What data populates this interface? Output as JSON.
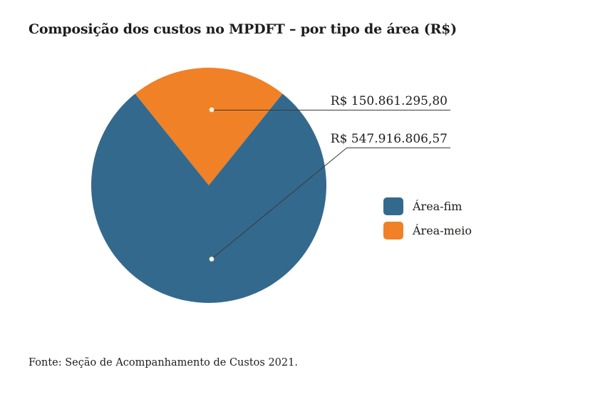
{
  "chart_data": {
    "type": "pie",
    "title": "Composição dos custos no MPDFT – por tipo de área (R$)",
    "slices": [
      {
        "label": "Área-fim",
        "value": 547916806.57,
        "value_label": "R$ 547.916.806,57",
        "color": "#34698E"
      },
      {
        "label": "Área-meio",
        "value": 150861295.8,
        "value_label": "R$ 150.861.295,80",
        "color": "#F08126"
      }
    ],
    "legend_position": "right",
    "leader_line_color": "#3a3a3a",
    "anchor_dot_color": "#faf3dd"
  },
  "footer": {
    "source_note": "Fonte: Seção de Acompanhamento de Custos 2021."
  }
}
